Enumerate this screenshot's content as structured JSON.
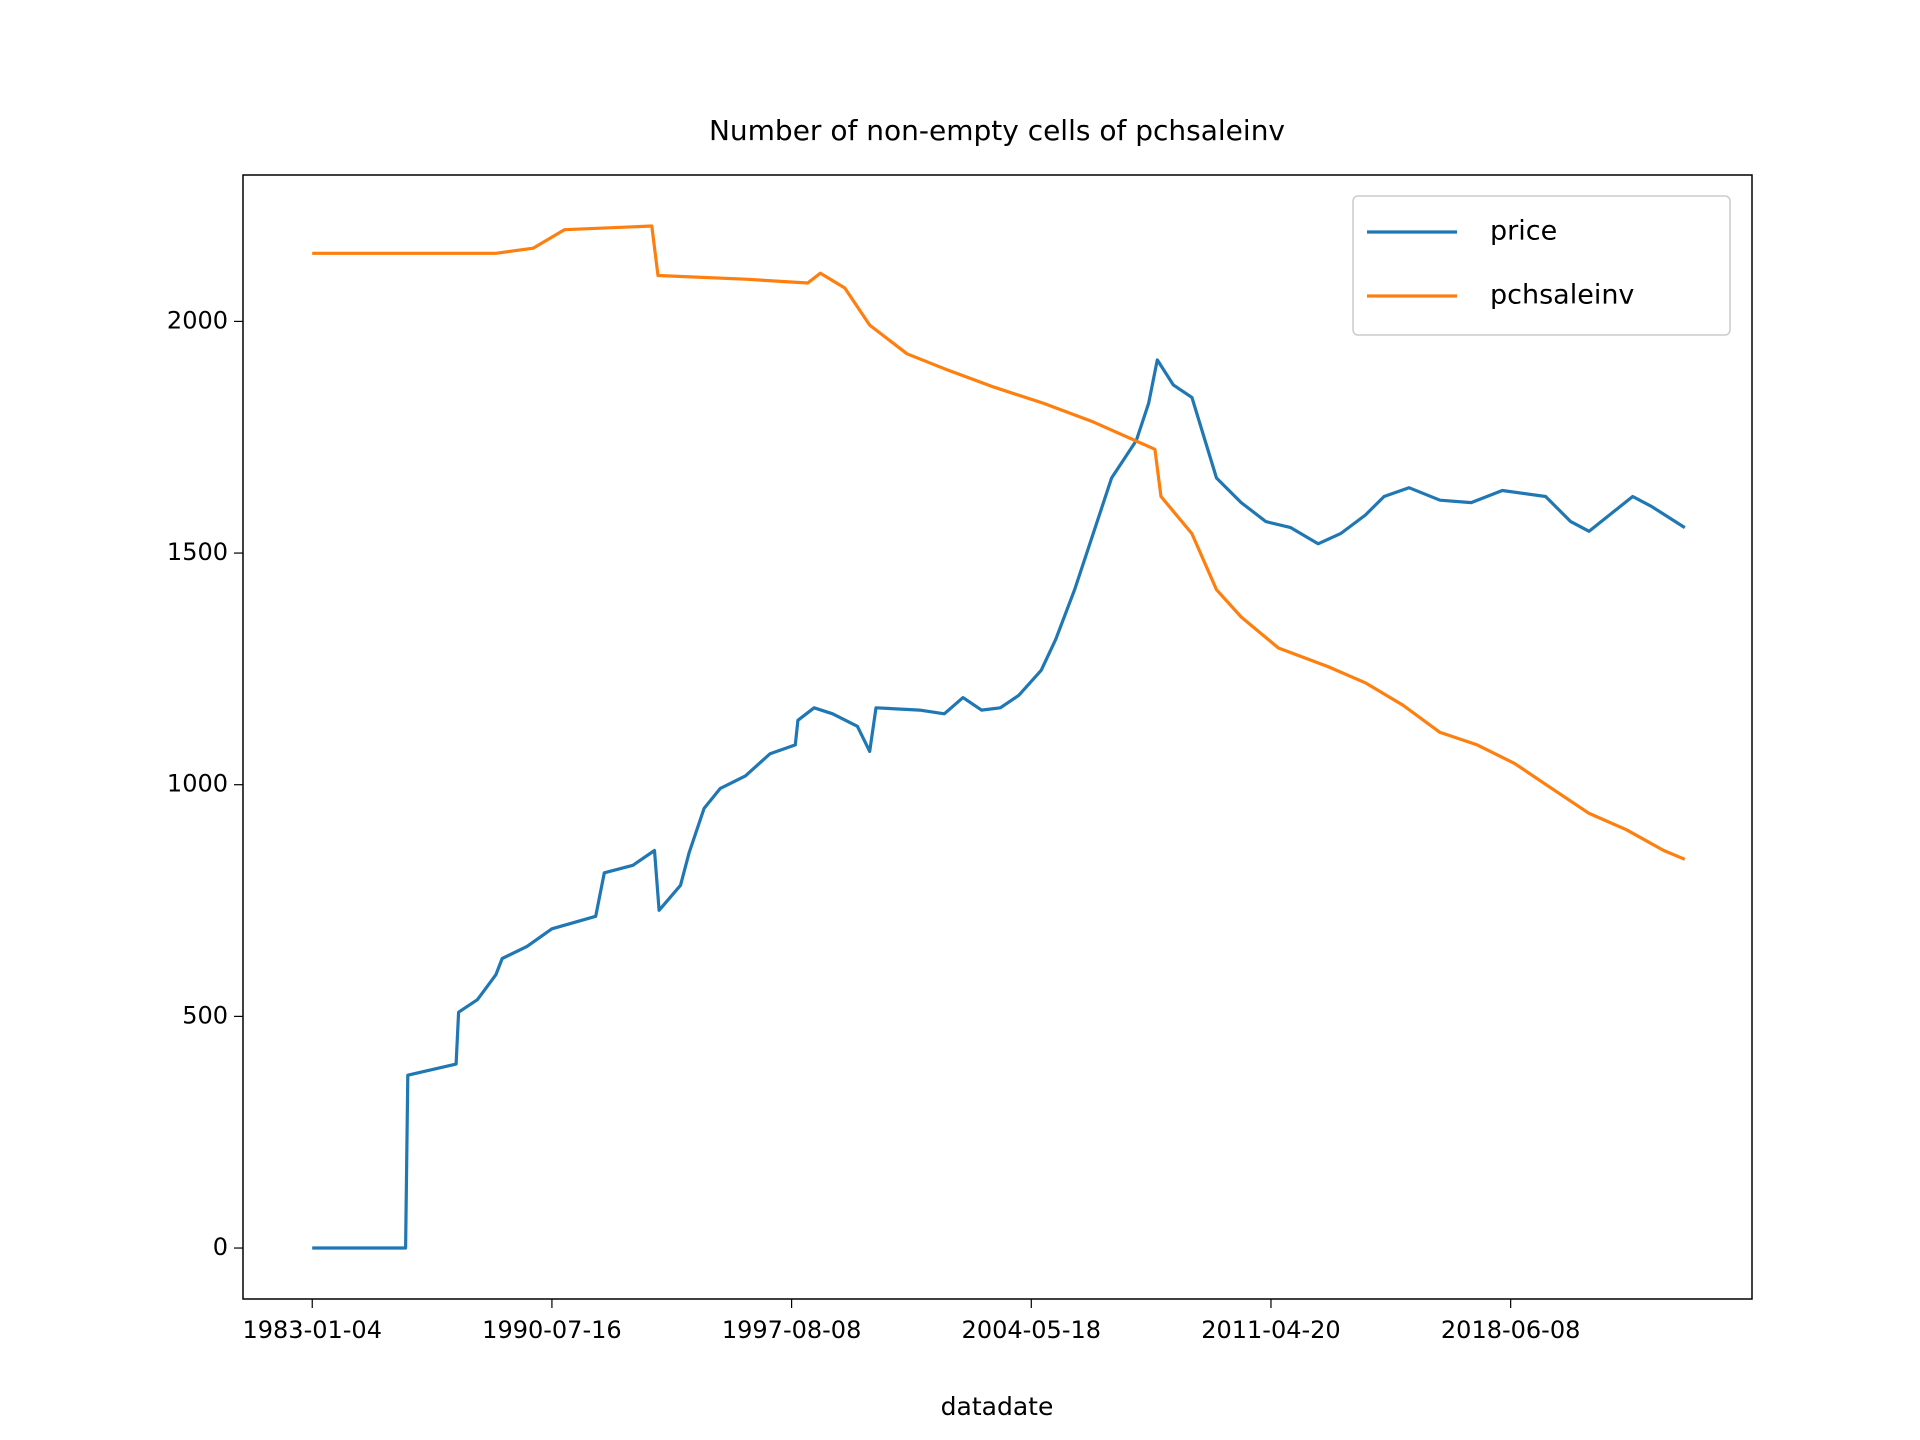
{
  "chart_data": {
    "type": "line",
    "title": "Number of non-empty cells of pchsaleinv",
    "x_label": "datadate",
    "xlim": [
      "1980-10-31",
      "2025-08-14"
    ],
    "xticks": [
      "1983-01-04",
      "1990-07-16",
      "1997-08-08",
      "2004-05-18",
      "2011-04-20",
      "2018-06-08"
    ],
    "ylim": [
      -110,
      2316
    ],
    "yticks": [
      0,
      500,
      1000,
      1500,
      2000
    ],
    "grid": false,
    "legend": "upper right",
    "series": [
      {
        "name": "price",
        "color": "#1f77b4",
        "x": [
          "1983-01-04",
          "1985-12-10",
          "1986-01-05",
          "1987-07-12",
          "1987-08-10",
          "1988-03-13",
          "1988-10-12",
          "1988-12-23",
          "1989-10-04",
          "1990-07-16",
          "1991-10-30",
          "1992-02-01",
          "1992-12-05",
          "1993-07-24",
          "1993-09-13",
          "1994-04-30",
          "1994-07-31",
          "1995-01-10",
          "1995-07-02",
          "1996-03-28",
          "1996-12-20",
          "1997-09-16",
          "1997-10-12",
          "1998-03-27",
          "1998-10-05",
          "1999-06-18",
          "1999-10-23",
          "1999-12-27",
          "2001-03-21",
          "2001-12-02",
          "2002-06-13",
          "2002-12-21",
          "2003-07-02",
          "2004-01-11",
          "2004-09-01",
          "2005-02-03",
          "2005-08-18",
          "2006-03-01",
          "2006-09-13",
          "2007-05-30",
          "2007-10-08",
          "2008-01-08",
          "2008-06-25",
          "2009-01-08",
          "2009-09-24",
          "2010-06-10",
          "2011-02-27",
          "2011-11-21",
          "2012-09-15",
          "2013-05-16",
          "2014-02-10",
          "2014-09-02",
          "2015-05-29",
          "2016-05-01",
          "2017-04-05",
          "2018-03-08",
          "2019-06-23",
          "2020-03-21",
          "2020-10-08",
          "2021-07-05",
          "2022-01-26",
          "2022-08-15",
          "2023-08-14"
        ],
        "values": [
          0,
          0,
          373,
          397,
          509,
          536,
          590,
          625,
          651,
          689,
          716,
          810,
          826,
          858,
          729,
          783,
          853,
          949,
          992,
          1019,
          1067,
          1086,
          1139,
          1166,
          1153,
          1126,
          1072,
          1166,
          1161,
          1153,
          1188,
          1161,
          1166,
          1193,
          1247,
          1314,
          1421,
          1542,
          1662,
          1743,
          1823,
          1917,
          1863,
          1836,
          1662,
          1609,
          1568,
          1555,
          1520,
          1542,
          1582,
          1622,
          1641,
          1614,
          1609,
          1635,
          1622,
          1568,
          1547,
          1590,
          1622,
          1601,
          1555
        ]
      },
      {
        "name": "pchsaleinv",
        "color": "#ff7f0e",
        "x": [
          "1983-01-04",
          "1988-10-12",
          "1989-12-13",
          "1990-11-28",
          "1993-06-25",
          "1993-09-01",
          "1996-03-28",
          "1998-01-22",
          "1998-05-31",
          "1999-02-10",
          "1999-10-23",
          "2000-11-13",
          "2001-12-02",
          "2003-04-30",
          "2004-09-27",
          "2006-03-01",
          "2007-12-13",
          "2008-02-17",
          "2009-01-08",
          "2009-09-24",
          "2010-06-10",
          "2011-07-09",
          "2013-01-01",
          "2014-02-10",
          "2015-03-21",
          "2016-05-01",
          "2017-06-10",
          "2018-07-19",
          "2019-08-28",
          "2020-10-08",
          "2021-11-17",
          "2022-12-28",
          "2023-08-14"
        ],
        "values": [
          2147,
          2147,
          2158,
          2198,
          2206,
          2099,
          2091,
          2083,
          2104,
          2072,
          1992,
          1930,
          1898,
          1858,
          1823,
          1783,
          1724,
          1622,
          1542,
          1421,
          1362,
          1295,
          1255,
          1220,
          1172,
          1113,
          1086,
          1046,
          992,
          938,
          903,
          858,
          839
        ]
      }
    ]
  }
}
